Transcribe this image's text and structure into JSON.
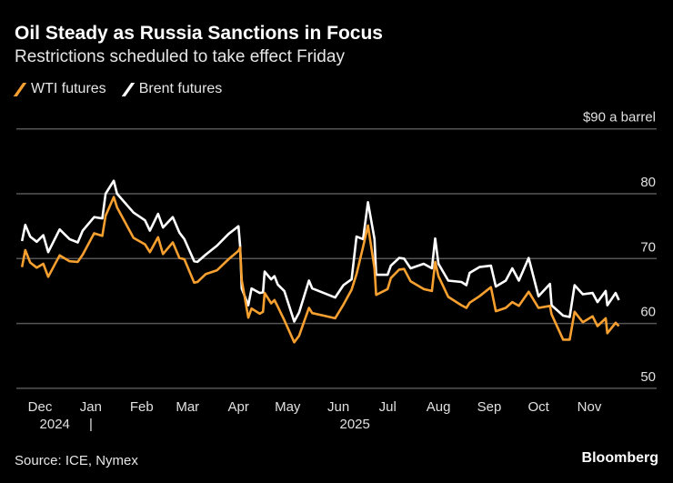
{
  "title": "Oil Steady as Russia Sanctions in Focus",
  "subtitle": "Restrictions scheduled to take effect Friday",
  "source": "Source: ICE, Nymex",
  "brand": "Bloomberg",
  "colors": {
    "wti": "#f7a030",
    "brent": "#ffffff",
    "grid": "#555555",
    "background": "#000000"
  },
  "chart_data": {
    "type": "line",
    "title": "Oil Steady as Russia Sanctions in Focus",
    "subtitle": "Restrictions scheduled to take effect Friday",
    "y_unit_label": "$90 a barrel",
    "ylim": [
      50,
      90
    ],
    "y_ticks": [
      {
        "value": 90,
        "label": "$90 a barrel"
      },
      {
        "value": 80,
        "label": "80"
      },
      {
        "value": 70,
        "label": "70"
      },
      {
        "value": 60,
        "label": "60"
      },
      {
        "value": 50,
        "label": "50"
      }
    ],
    "x_ticks": [
      {
        "date": "2024-12-01",
        "label": "Dec"
      },
      {
        "date": "2025-01-01",
        "label": "Jan"
      },
      {
        "date": "2025-02-01",
        "label": "Feb"
      },
      {
        "date": "2025-03-01",
        "label": "Mar"
      },
      {
        "date": "2025-04-01",
        "label": "Apr"
      },
      {
        "date": "2025-05-01",
        "label": "May"
      },
      {
        "date": "2025-06-01",
        "label": "Jun"
      },
      {
        "date": "2025-07-01",
        "label": "Jul"
      },
      {
        "date": "2025-08-01",
        "label": "Aug"
      },
      {
        "date": "2025-09-01",
        "label": "Sep"
      },
      {
        "date": "2025-10-01",
        "label": "Oct"
      },
      {
        "date": "2025-11-01",
        "label": "Nov"
      }
    ],
    "year_labels": [
      {
        "date": "2024-12-10",
        "label": "2024"
      },
      {
        "date": "2025-06-11",
        "label": "2025"
      }
    ],
    "year_divider": "|",
    "grid": true,
    "legend": "top-left",
    "series": [
      {
        "name": "WTI futures",
        "color": "#f7a030",
        "key": "wti"
      },
      {
        "name": "Brent futures",
        "color": "#ffffff",
        "key": "brent"
      }
    ],
    "dates": [
      "2024-11-20",
      "2024-11-22",
      "2024-11-25",
      "2024-11-29",
      "2024-12-03",
      "2024-12-06",
      "2024-12-13",
      "2024-12-19",
      "2024-12-24",
      "2024-12-27",
      "2025-01-03",
      "2025-01-08",
      "2025-01-10",
      "2025-01-15",
      "2025-01-17",
      "2025-01-27",
      "2025-02-03",
      "2025-02-06",
      "2025-02-11",
      "2025-02-14",
      "2025-02-20",
      "2025-02-24",
      "2025-02-27",
      "2025-03-05",
      "2025-03-07",
      "2025-03-12",
      "2025-03-19",
      "2025-03-26",
      "2025-04-01",
      "2025-04-02",
      "2025-04-03",
      "2025-04-07",
      "2025-04-09",
      "2025-04-14",
      "2025-04-16",
      "2025-04-17",
      "2025-04-21",
      "2025-04-23",
      "2025-04-25",
      "2025-04-29",
      "2025-05-05",
      "2025-05-08",
      "2025-05-14",
      "2025-05-16",
      "2025-05-23",
      "2025-05-30",
      "2025-06-04",
      "2025-06-09",
      "2025-06-12",
      "2025-06-16",
      "2025-06-19",
      "2025-06-23",
      "2025-06-24",
      "2025-07-01",
      "2025-07-03",
      "2025-07-08",
      "2025-07-11",
      "2025-07-15",
      "2025-07-23",
      "2025-07-28",
      "2025-07-30",
      "2025-08-01",
      "2025-08-07",
      "2025-08-15",
      "2025-08-18",
      "2025-08-20",
      "2025-08-26",
      "2025-09-02",
      "2025-09-05",
      "2025-09-11",
      "2025-09-15",
      "2025-09-19",
      "2025-09-25",
      "2025-10-01",
      "2025-10-08",
      "2025-10-09",
      "2025-10-16",
      "2025-10-20",
      "2025-10-23",
      "2025-10-28",
      "2025-11-03",
      "2025-11-06",
      "2025-11-11",
      "2025-11-12",
      "2025-11-17",
      "2025-11-19"
    ],
    "wti": [
      68.7,
      71.3,
      69.4,
      68.6,
      69.2,
      67.2,
      70.5,
      69.6,
      69.5,
      70.6,
      73.9,
      73.5,
      76.6,
      79.5,
      77.9,
      73.2,
      72.2,
      71.0,
      73.3,
      70.7,
      72.5,
      70.1,
      69.9,
      66.3,
      66.4,
      67.6,
      68.2,
      69.9,
      71.2,
      71.7,
      66.7,
      60.9,
      62.3,
      61.5,
      61.8,
      64.7,
      63.1,
      63.6,
      62.6,
      60.5,
      57.1,
      58.1,
      62.4,
      61.6,
      61.2,
      60.8,
      62.9,
      65.2,
      67.6,
      71.8,
      75.1,
      68.5,
      64.4,
      65.3,
      67.0,
      68.3,
      68.4,
      66.5,
      65.3,
      65.0,
      69.5,
      67.3,
      64.1,
      62.8,
      62.4,
      63.2,
      64.2,
      65.6,
      61.9,
      62.4,
      63.3,
      62.7,
      64.9,
      62.4,
      62.7,
      61.4,
      57.5,
      57.5,
      61.8,
      60.2,
      61.1,
      59.6,
      60.8,
      58.5,
      60.1,
      59.6
    ],
    "brent": [
      72.7,
      75.2,
      73.4,
      72.6,
      73.6,
      71.0,
      74.5,
      73.0,
      72.5,
      74.3,
      76.4,
      76.2,
      80.0,
      82.0,
      80.0,
      77.1,
      75.9,
      74.3,
      76.9,
      74.8,
      76.4,
      74.0,
      73.0,
      69.6,
      69.5,
      70.6,
      72.0,
      73.8,
      75.0,
      72.0,
      65.4,
      62.8,
      65.4,
      64.7,
      64.8,
      68.0,
      66.8,
      67.3,
      66.0,
      65.0,
      60.3,
      61.7,
      66.6,
      65.4,
      64.7,
      64.0,
      65.9,
      66.8,
      73.4,
      73.0,
      78.7,
      73.0,
      67.5,
      67.5,
      68.9,
      70.1,
      70.0,
      68.5,
      69.2,
      68.5,
      73.1,
      69.2,
      66.6,
      66.4,
      65.9,
      67.8,
      68.7,
      68.9,
      65.7,
      66.6,
      68.5,
      66.6,
      70.1,
      64.2,
      66.1,
      62.8,
      61.2,
      61.0,
      65.9,
      64.5,
      64.7,
      63.3,
      65.0,
      62.8,
      64.7,
      63.6
    ]
  }
}
